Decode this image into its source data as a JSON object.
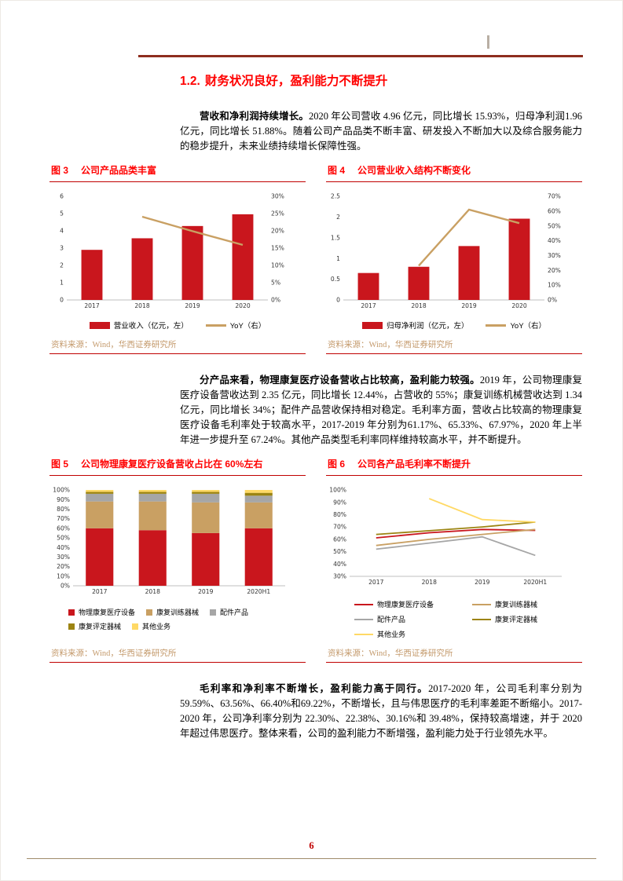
{
  "page": {
    "number": "6"
  },
  "heading": {
    "number": "1.2.",
    "title": "财务状况良好，盈利能力不断提升"
  },
  "paragraphs": {
    "p1": {
      "lead": "营收和净利润持续增长。",
      "rest": "2020 年公司营收 4.96 亿元，同比增长 15.93%，归母净利润1.96 亿元，同比增长 51.88%。随着公司产品品类不断丰富、研发投入不断加大以及综合服务能力的稳步提升，未来业绩持续增长保障性强。"
    },
    "p2": {
      "lead": "分产品来看，物理康复医疗设备营收占比较高，盈利能力较强。",
      "rest": "2019 年，公司物理康复医疗设备营收达到 2.35 亿元，同比增长 12.44%，占营收的 55%；康复训练机械营收达到 1.34 亿元，同比增长 34%；配件产品营收保持相对稳定。毛利率方面，营收占比较高的物理康复医疗设备毛利率处于较高水平，2017-2019 年分别为61.17%、65.33%、67.97%，2020 年上半年进一步提升至 67.24%。其他产品类型毛利率同样维持较高水平，并不断提升。"
    },
    "p3": {
      "lead": "毛利率和净利率不断增长，盈利能力高于同行。",
      "rest": "2017-2020 年，公司毛利率分别为 59.59%、63.56%、66.40%和69.22%，不断增长，且与伟思医疗的毛利率差距不断缩小。2017-2020 年，公司净利率分别为 22.30%、22.38%、30.16%和 39.48%，保持较高增速，并于 2020 年超过伟思医疗。整体来看，公司的盈利能力不断增强，盈利能力处于行业领先水平。"
    }
  },
  "figures": {
    "fig3": {
      "label": "图 3",
      "title": "公司产品品类丰富",
      "source": "资料来源：Wind，华西证券研究所"
    },
    "fig4": {
      "label": "图 4",
      "title": "公司营业收入结构不断变化",
      "source": "资料来源：Wind，华西证券研究所"
    },
    "fig5": {
      "label": "图 5",
      "title": "公司物理康复医疗设备营收占比在 60%左右",
      "source": "资料来源：Wind，华西证券研究所"
    },
    "fig6": {
      "label": "图 6",
      "title": "公司各产品毛利率不断提升",
      "source": "资料来源：Wind，华西证券研究所"
    }
  },
  "colors": {
    "accent_red": "#C9161D",
    "tan": "#C9A063",
    "gray": "#A6A6A6",
    "gold": "#9C8412",
    "yellow": "#FFD965",
    "caption_red": "#FF0000",
    "rule_red": "#C00000"
  },
  "chart_data": [
    {
      "id": "fig3",
      "type": "bar",
      "title": "公司产品品类丰富",
      "categories": [
        "2017",
        "2018",
        "2019",
        "2020"
      ],
      "series": [
        {
          "name": "营业收入（亿元，左）",
          "kind": "bar",
          "axis": "left",
          "color": "#C9161D",
          "values": [
            2.9,
            3.57,
            4.28,
            4.96
          ]
        },
        {
          "name": "YoY（右）",
          "kind": "line",
          "axis": "right",
          "color": "#C9A063",
          "values": [
            null,
            24.1,
            19.9,
            15.93
          ]
        }
      ],
      "left_axis": {
        "min": 0,
        "max": 6,
        "step": 1,
        "suffix": ""
      },
      "right_axis": {
        "min": 0,
        "max": 30,
        "step": 5,
        "suffix": "%"
      },
      "legend_position": "bottom",
      "grid": false
    },
    {
      "id": "fig4",
      "type": "bar",
      "title": "公司营业收入结构不断变化",
      "categories": [
        "2017",
        "2018",
        "2019",
        "2020"
      ],
      "series": [
        {
          "name": "归母净利润（亿元，左）",
          "kind": "bar",
          "axis": "left",
          "color": "#C9161D",
          "values": [
            0.65,
            0.8,
            1.3,
            1.96
          ]
        },
        {
          "name": "YoY（右）",
          "kind": "line",
          "axis": "right",
          "color": "#C9A063",
          "values": [
            null,
            23.1,
            61.0,
            51.88
          ]
        }
      ],
      "left_axis": {
        "min": 0,
        "max": 2.5,
        "step": 0.5,
        "suffix": ""
      },
      "right_axis": {
        "min": 0,
        "max": 70,
        "step": 10,
        "suffix": "%"
      },
      "legend_position": "bottom",
      "grid": false
    },
    {
      "id": "fig5",
      "type": "stacked-bar",
      "title": "公司物理康复医疗设备营收占比在 60%左右",
      "categories": [
        "2017",
        "2018",
        "2019",
        "2020H1"
      ],
      "series": [
        {
          "name": "物理康复医疗设备",
          "color": "#C9161D",
          "values": [
            60,
            58,
            55,
            60
          ]
        },
        {
          "name": "康复训练器械",
          "color": "#C9A063",
          "values": [
            28,
            30,
            32,
            27
          ]
        },
        {
          "name": "配件产品",
          "color": "#A6A6A6",
          "values": [
            8,
            8,
            9,
            7
          ]
        },
        {
          "name": "康复评定器械",
          "color": "#9C8412",
          "values": [
            2,
            2,
            2,
            3
          ]
        },
        {
          "name": "其他业务",
          "color": "#FFD965",
          "values": [
            2,
            2,
            2,
            3
          ]
        }
      ],
      "left_axis": {
        "min": 0,
        "max": 100,
        "step": 10,
        "suffix": "%"
      },
      "legend_position": "bottom",
      "grid": false
    },
    {
      "id": "fig6",
      "type": "line",
      "title": "公司各产品毛利率不断提升",
      "categories": [
        "2017",
        "2018",
        "2019",
        "2020H1"
      ],
      "series": [
        {
          "name": "物理康复医疗设备",
          "color": "#C9161D",
          "values": [
            61.17,
            65.33,
            67.97,
            67.24
          ]
        },
        {
          "name": "康复训练器械",
          "color": "#C9A063",
          "values": [
            55,
            60,
            64,
            68
          ]
        },
        {
          "name": "配件产品",
          "color": "#A6A6A6",
          "values": [
            52,
            57,
            62,
            47
          ]
        },
        {
          "name": "康复评定器械",
          "color": "#9C8412",
          "values": [
            64,
            67,
            70,
            74
          ]
        },
        {
          "name": "其他业务",
          "color": "#FFD965",
          "values": [
            null,
            93,
            76,
            74
          ]
        }
      ],
      "left_axis": {
        "min": 30,
        "max": 100,
        "step": 10,
        "suffix": "%"
      },
      "legend_position": "bottom",
      "grid": false
    }
  ]
}
